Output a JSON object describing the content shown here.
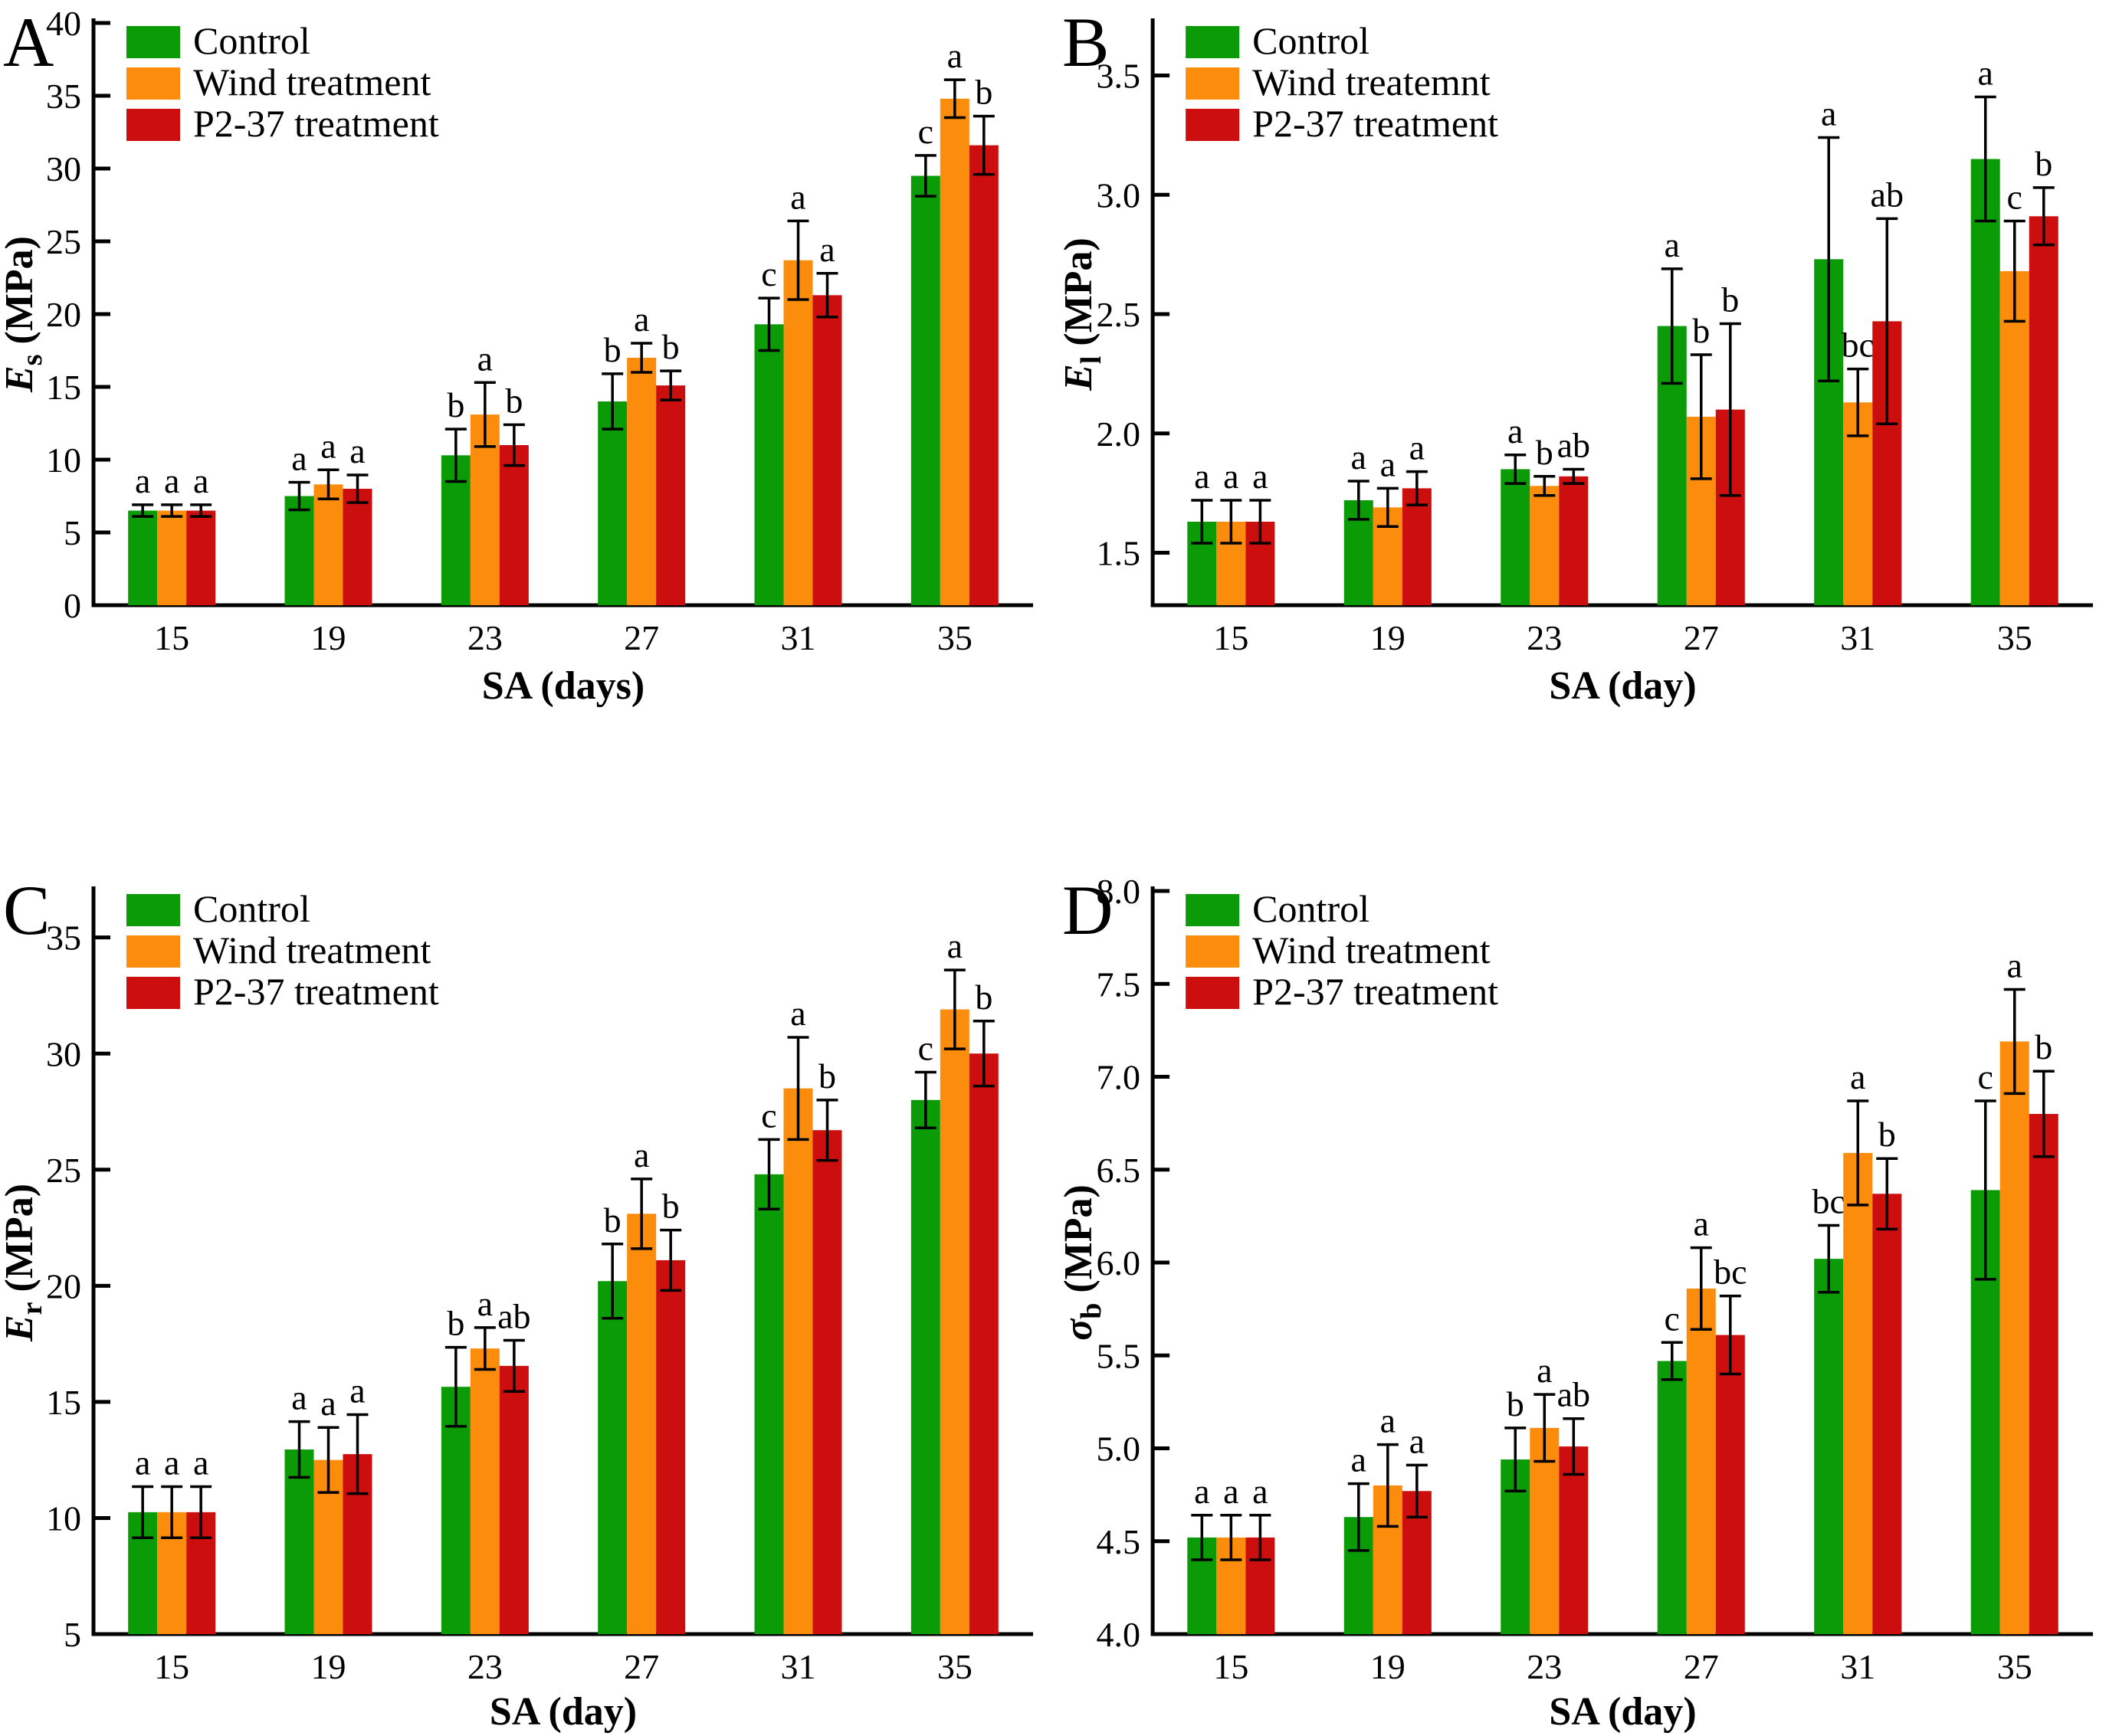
{
  "figure": {
    "background": "#ffffff",
    "axis_color": "#000000",
    "text_color": "#000000",
    "series_colors": {
      "control": "#0a9b06",
      "wind": "#fb8c0c",
      "p237": "#cc0f0e"
    }
  },
  "chart_data": [
    {
      "panel_letter": "A",
      "type": "bar",
      "xlabel": "SA (days)",
      "ylabel": {
        "symbol": "E",
        "subscript": "s",
        "unit": " (MPa)"
      },
      "ylim": [
        0,
        40
      ],
      "yticks": [
        0,
        5,
        10,
        15,
        20,
        25,
        30,
        35,
        40
      ],
      "ytick_decimals": 0,
      "grid": false,
      "legend_position": "top-left",
      "categories": [
        "15",
        "19",
        "23",
        "27",
        "31",
        "35"
      ],
      "legend": [
        "Control",
        "Wind treatment",
        "P2-37 treatment"
      ],
      "series": [
        {
          "name": "Control",
          "color": "#0a9b06",
          "values": [
            6.5,
            7.5,
            10.3,
            14.0,
            19.3,
            29.5
          ],
          "errors": [
            0.4,
            0.95,
            1.8,
            1.9,
            1.8,
            1.4
          ],
          "letters": [
            "a",
            "a",
            "b",
            "b",
            "c",
            "c"
          ]
        },
        {
          "name": "Wind treatment",
          "color": "#fb8c0c",
          "values": [
            6.5,
            8.3,
            13.1,
            17.0,
            23.7,
            34.8
          ],
          "errors": [
            0.4,
            1.0,
            2.2,
            1.0,
            2.7,
            1.3
          ],
          "letters": [
            "a",
            "a",
            "a",
            "a",
            "a",
            "a"
          ]
        },
        {
          "name": "P2-37 treatment",
          "color": "#cc0f0e",
          "values": [
            6.5,
            8.0,
            11.0,
            15.1,
            21.3,
            31.6
          ],
          "errors": [
            0.4,
            0.95,
            1.4,
            1.0,
            1.5,
            2.0
          ],
          "letters": [
            "a",
            "a",
            "b",
            "b",
            "a",
            "b"
          ]
        }
      ]
    },
    {
      "panel_letter": "B",
      "type": "bar",
      "xlabel": "SA (day)",
      "ylabel": {
        "symbol": "E",
        "subscript": "l",
        "unit": " (MPa)"
      },
      "ylim": [
        1.28,
        3.72
      ],
      "yticks": [
        1.5,
        2.0,
        2.5,
        3.0,
        3.5
      ],
      "ytick_decimals": 1,
      "grid": false,
      "legend_position": "top-left",
      "categories": [
        "15",
        "19",
        "23",
        "27",
        "31",
        "35"
      ],
      "legend": [
        "Control",
        "Wind treatemnt",
        "P2-37 treatment"
      ],
      "series": [
        {
          "name": "Control",
          "color": "#0a9b06",
          "values": [
            1.63,
            1.72,
            1.85,
            2.45,
            2.73,
            3.15
          ],
          "errors": [
            0.09,
            0.08,
            0.06,
            0.24,
            0.51,
            0.26
          ],
          "letters": [
            "a",
            "a",
            "a",
            "a",
            "a",
            "a"
          ]
        },
        {
          "name": "Wind treatemnt",
          "color": "#fb8c0c",
          "values": [
            1.63,
            1.69,
            1.78,
            2.07,
            2.13,
            2.68
          ],
          "errors": [
            0.09,
            0.08,
            0.04,
            0.26,
            0.14,
            0.21
          ],
          "letters": [
            "a",
            "a",
            "b",
            "b",
            "bc",
            "c"
          ]
        },
        {
          "name": "P2-37 treatment",
          "color": "#cc0f0e",
          "values": [
            1.63,
            1.77,
            1.82,
            2.1,
            2.47,
            2.91
          ],
          "errors": [
            0.09,
            0.07,
            0.03,
            0.36,
            0.43,
            0.12
          ],
          "letters": [
            "a",
            "a",
            "ab",
            "b",
            "ab",
            "b"
          ]
        }
      ]
    },
    {
      "panel_letter": "C",
      "type": "bar",
      "xlabel": "SA (day)",
      "ylabel": {
        "symbol": "E",
        "subscript": "r",
        "unit": " (MPa)"
      },
      "ylim": [
        5,
        37
      ],
      "yticks": [
        5,
        10,
        15,
        20,
        25,
        30,
        35
      ],
      "ytick_decimals": 0,
      "grid": false,
      "legend_position": "top-left",
      "categories": [
        "15",
        "19",
        "23",
        "27",
        "31",
        "35"
      ],
      "legend": [
        "Control",
        "Wind treatment",
        "P2-37 treatment"
      ],
      "series": [
        {
          "name": "Control",
          "color": "#0a9b06",
          "values": [
            10.25,
            12.95,
            15.65,
            20.2,
            24.8,
            28.0
          ],
          "errors": [
            1.1,
            1.2,
            1.7,
            1.6,
            1.5,
            1.2
          ],
          "letters": [
            "a",
            "a",
            "b",
            "b",
            "c",
            "c"
          ]
        },
        {
          "name": "Wind treatment",
          "color": "#fb8c0c",
          "values": [
            10.25,
            12.5,
            17.3,
            23.1,
            28.5,
            31.9
          ],
          "errors": [
            1.1,
            1.4,
            0.9,
            1.5,
            2.2,
            1.7
          ],
          "letters": [
            "a",
            "a",
            "a",
            "a",
            "a",
            "a"
          ]
        },
        {
          "name": "P2-37 treatment",
          "color": "#cc0f0e",
          "values": [
            10.25,
            12.75,
            16.55,
            21.1,
            26.7,
            30.0
          ],
          "errors": [
            1.1,
            1.7,
            1.1,
            1.3,
            1.3,
            1.4
          ],
          "letters": [
            "a",
            "a",
            "ab",
            "b",
            "b",
            "b"
          ]
        }
      ]
    },
    {
      "panel_letter": "D",
      "type": "bar",
      "xlabel": "SA (day)",
      "ylabel": {
        "symbol": "σ",
        "subscript": "b",
        "unit": " (MPa)"
      },
      "ylim": [
        4.0,
        8.0
      ],
      "yticks": [
        4.0,
        4.5,
        5.0,
        5.5,
        6.0,
        6.5,
        7.0,
        7.5,
        8.0
      ],
      "ytick_decimals": 1,
      "grid": false,
      "legend_position": "top-left",
      "categories": [
        "15",
        "19",
        "23",
        "27",
        "31",
        "35"
      ],
      "legend": [
        "Control",
        "Wind treatment",
        "P2-37 treatment"
      ],
      "series": [
        {
          "name": "Control",
          "color": "#0a9b06",
          "values": [
            4.52,
            4.63,
            4.94,
            5.47,
            6.02,
            6.39
          ],
          "errors": [
            0.12,
            0.18,
            0.17,
            0.1,
            0.18,
            0.48
          ],
          "letters": [
            "a",
            "a",
            "b",
            "c",
            "bc",
            "c"
          ]
        },
        {
          "name": "Wind treatment",
          "color": "#fb8c0c",
          "values": [
            4.52,
            4.8,
            5.11,
            5.86,
            6.59,
            7.19
          ],
          "errors": [
            0.12,
            0.22,
            0.18,
            0.22,
            0.28,
            0.28
          ],
          "letters": [
            "a",
            "a",
            "a",
            "a",
            "a",
            "a"
          ]
        },
        {
          "name": "P2-37 treatment",
          "color": "#cc0f0e",
          "values": [
            4.52,
            4.77,
            5.01,
            5.61,
            6.37,
            6.8
          ],
          "errors": [
            0.12,
            0.14,
            0.15,
            0.21,
            0.19,
            0.23
          ],
          "letters": [
            "a",
            "a",
            "ab",
            "bc",
            "b",
            "b"
          ]
        }
      ]
    }
  ]
}
